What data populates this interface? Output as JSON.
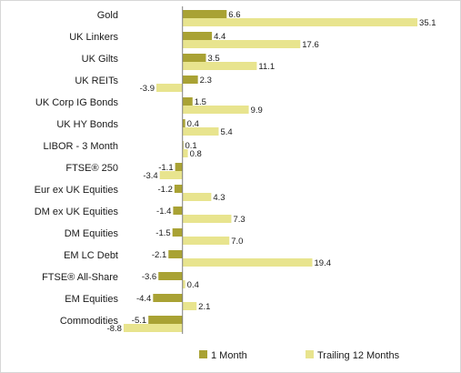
{
  "chart_data": {
    "type": "bar",
    "orientation": "horizontal",
    "categories": [
      "Gold",
      "UK Linkers",
      "UK Gilts",
      "UK REITs",
      "UK Corp IG Bonds",
      "UK HY Bonds",
      "LIBOR - 3 Month",
      "FTSE® 250",
      "Eur ex UK Equities",
      "DM ex UK Equities",
      "DM Equities",
      "EM LC Debt",
      "FTSE® All-Share",
      "EM Equities",
      "Commodities"
    ],
    "series": [
      {
        "name": "1 Month",
        "color": "#a9a234",
        "values": [
          6.6,
          4.4,
          3.5,
          2.3,
          1.5,
          0.4,
          0.1,
          -1.1,
          -1.2,
          -1.4,
          -1.5,
          -2.1,
          -3.6,
          -4.4,
          -5.1
        ],
        "labels": [
          "6.6",
          "4.4",
          "3.5",
          "2.3",
          "1.5",
          "0.4",
          "0.1",
          "-1.1",
          "-1.2",
          "-1.4",
          "-1.5",
          "-2.1",
          "-3.6",
          "-4.4",
          "-5.1"
        ]
      },
      {
        "name": "Trailing 12 Months",
        "color": "#e8e48e",
        "values": [
          35.1,
          17.6,
          11.1,
          -3.9,
          9.9,
          5.4,
          0.8,
          -3.4,
          4.3,
          7.3,
          7.0,
          19.4,
          0.4,
          2.1,
          -8.8
        ],
        "labels": [
          "35.1",
          "17.6",
          "11.1",
          "-3.9",
          "9.9",
          "5.4",
          "0.8",
          "-3.4",
          "4.3",
          "7.3",
          "7.0",
          "19.4",
          "0.4",
          "2.1",
          "-8.8"
        ]
      }
    ],
    "xlim": [
      -9.2,
      35.5
    ],
    "grid": false,
    "legend": "bottom",
    "title": "",
    "xlabel": "",
    "ylabel": ""
  }
}
